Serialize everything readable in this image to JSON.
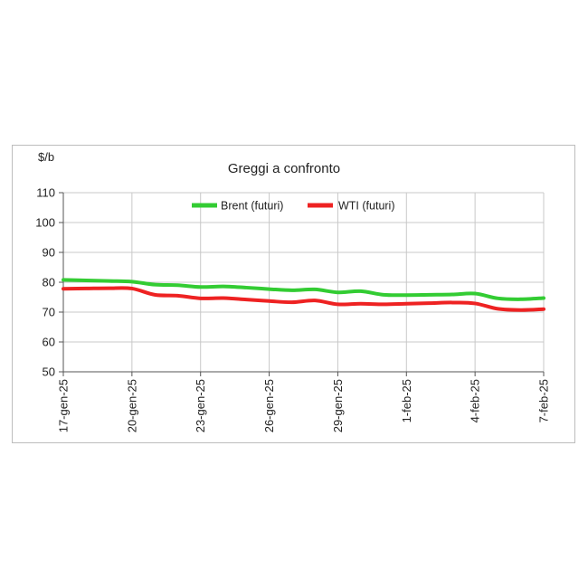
{
  "chart_data": {
    "type": "line",
    "title": "Greggi a confronto",
    "unit_label": "$/b",
    "xlabel": "",
    "ylabel": "",
    "ylim": [
      50,
      110
    ],
    "yticks": [
      50,
      60,
      70,
      80,
      90,
      100,
      110
    ],
    "xticks": [
      "17-gen-25",
      "20-gen-25",
      "23-gen-25",
      "26-gen-25",
      "29-gen-25",
      "1-feb-25",
      "4-feb-25",
      "7-feb-25"
    ],
    "grid": true,
    "legend_position": "top",
    "x": [
      "17-gen-25",
      "18-gen-25",
      "19-gen-25",
      "20-gen-25",
      "21-gen-25",
      "22-gen-25",
      "23-gen-25",
      "24-gen-25",
      "25-gen-25",
      "26-gen-25",
      "27-gen-25",
      "28-gen-25",
      "29-gen-25",
      "30-gen-25",
      "31-gen-25",
      "1-feb-25",
      "2-feb-25",
      "3-feb-25",
      "4-feb-25",
      "5-feb-25",
      "6-feb-25",
      "7-feb-25"
    ],
    "series": [
      {
        "name": "Brent (futuri)",
        "color": "#33cc33",
        "values": [
          80.8,
          80.6,
          80.4,
          80.2,
          79.2,
          79.0,
          78.4,
          78.6,
          78.2,
          77.7,
          77.3,
          77.6,
          76.6,
          77.0,
          75.8,
          75.7,
          75.8,
          75.9,
          76.2,
          74.6,
          74.3,
          74.7
        ]
      },
      {
        "name": "WTI (futuri)",
        "color": "#ee2222",
        "values": [
          77.8,
          77.9,
          78.0,
          77.9,
          75.8,
          75.5,
          74.6,
          74.7,
          74.2,
          73.7,
          73.3,
          73.9,
          72.6,
          72.8,
          72.6,
          72.8,
          73.0,
          73.2,
          72.9,
          71.1,
          70.7,
          71.0
        ]
      }
    ]
  }
}
